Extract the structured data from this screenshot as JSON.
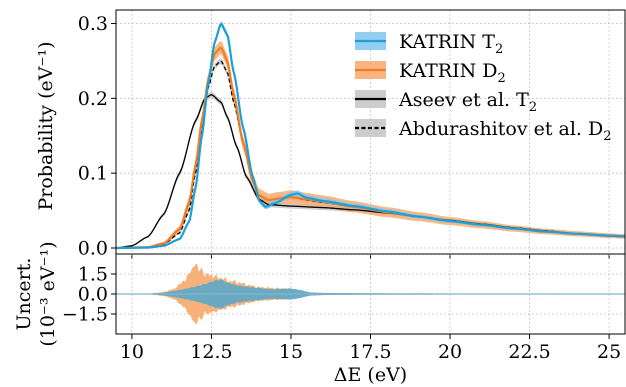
{
  "chart_data": [
    {
      "type": "line",
      "panel": "top",
      "xlim": [
        9.5,
        25.5
      ],
      "ylim": [
        -0.008,
        0.318
      ],
      "grid": true,
      "legend_position": "top-right",
      "xticks": [
        10,
        12.5,
        15,
        17.5,
        20,
        22.5,
        25
      ],
      "yticks": [
        0.0,
        0.1,
        0.2,
        0.3
      ],
      "ytick_labels": [
        "0.0",
        "0.1",
        "0.2",
        "0.3"
      ],
      "ylabel": "Probability (eV⁻¹)",
      "xlabel": "",
      "series": [
        {
          "name": "KATRIN T₂",
          "style": "line with band",
          "color": "#1f9fd6",
          "band_color": "#86c9ee",
          "points": [
            [
              9.5,
              0.0
            ],
            [
              10.5,
              0.0005
            ],
            [
              11.0,
              0.003
            ],
            [
              11.5,
              0.012
            ],
            [
              11.8,
              0.035
            ],
            [
              12.0,
              0.08
            ],
            [
              12.2,
              0.15
            ],
            [
              12.4,
              0.22
            ],
            [
              12.6,
              0.275
            ],
            [
              12.8,
              0.3
            ],
            [
              13.0,
              0.285
            ],
            [
              13.2,
              0.235
            ],
            [
              13.5,
              0.16
            ],
            [
              13.8,
              0.095
            ],
            [
              14.0,
              0.063
            ],
            [
              14.2,
              0.055
            ],
            [
              14.5,
              0.06
            ],
            [
              15.0,
              0.071
            ],
            [
              15.2,
              0.073
            ],
            [
              15.5,
              0.067
            ],
            [
              16,
              0.063
            ],
            [
              17,
              0.056
            ],
            [
              18,
              0.049
            ],
            [
              19,
              0.042
            ],
            [
              20,
              0.036
            ],
            [
              21,
              0.031
            ],
            [
              22,
              0.026
            ],
            [
              23,
              0.022
            ],
            [
              24,
              0.019
            ],
            [
              25,
              0.0165
            ],
            [
              25.5,
              0.0155
            ]
          ]
        },
        {
          "name": "KATRIN D₂",
          "style": "line with band",
          "color": "#ef7d21",
          "band_color": "#f7ad73",
          "points": [
            [
              9.5,
              0.0
            ],
            [
              10.5,
              0.001
            ],
            [
              11.0,
              0.006
            ],
            [
              11.5,
              0.025
            ],
            [
              11.8,
              0.06
            ],
            [
              12.0,
              0.11
            ],
            [
              12.2,
              0.17
            ],
            [
              12.4,
              0.225
            ],
            [
              12.6,
              0.26
            ],
            [
              12.8,
              0.268
            ],
            [
              13.0,
              0.25
            ],
            [
              13.2,
              0.205
            ],
            [
              13.5,
              0.14
            ],
            [
              13.8,
              0.09
            ],
            [
              14.0,
              0.07
            ],
            [
              14.3,
              0.064
            ],
            [
              14.6,
              0.066
            ],
            [
              15.0,
              0.068
            ],
            [
              15.5,
              0.065
            ],
            [
              16,
              0.062
            ],
            [
              17,
              0.055
            ],
            [
              18,
              0.048
            ],
            [
              19,
              0.042
            ],
            [
              20,
              0.036
            ],
            [
              21,
              0.031
            ],
            [
              22,
              0.026
            ],
            [
              23,
              0.022
            ],
            [
              24,
              0.019
            ],
            [
              25,
              0.0165
            ],
            [
              25.5,
              0.0155
            ]
          ]
        },
        {
          "name": "Aseev et al. T₂",
          "style": "solid line with band",
          "color": "#000000",
          "band_color": "#c8c8c8",
          "points": [
            [
              9.5,
              0.0
            ],
            [
              10.0,
              0.003
            ],
            [
              10.5,
              0.015
            ],
            [
              11.0,
              0.045
            ],
            [
              11.5,
              0.1
            ],
            [
              12.0,
              0.17
            ],
            [
              12.3,
              0.2
            ],
            [
              12.5,
              0.205
            ],
            [
              12.8,
              0.195
            ],
            [
              13.0,
              0.175
            ],
            [
              13.3,
              0.135
            ],
            [
              13.6,
              0.095
            ],
            [
              14.0,
              0.065
            ],
            [
              14.3,
              0.058
            ],
            [
              15.0,
              0.056
            ],
            [
              16,
              0.054
            ],
            [
              17,
              0.051
            ],
            [
              18,
              0.047
            ],
            [
              19,
              0.042
            ],
            [
              20,
              0.037
            ],
            [
              21,
              0.032
            ],
            [
              22,
              0.027
            ],
            [
              23,
              0.023
            ],
            [
              24,
              0.019
            ],
            [
              25,
              0.016
            ],
            [
              25.5,
              0.015
            ]
          ]
        },
        {
          "name": "Abdurashitov et al. D₂",
          "style": "dashed line with band",
          "color": "#000000",
          "band_color": "#c8c8c8",
          "points": [
            [
              9.5,
              0.0
            ],
            [
              10.5,
              0.0008
            ],
            [
              11.0,
              0.005
            ],
            [
              11.5,
              0.02
            ],
            [
              11.8,
              0.05
            ],
            [
              12.0,
              0.1
            ],
            [
              12.2,
              0.16
            ],
            [
              12.4,
              0.215
            ],
            [
              12.6,
              0.243
            ],
            [
              12.8,
              0.25
            ],
            [
              13.0,
              0.235
            ],
            [
              13.2,
              0.195
            ],
            [
              13.5,
              0.14
            ],
            [
              13.8,
              0.09
            ],
            [
              14.0,
              0.07
            ],
            [
              14.3,
              0.064
            ],
            [
              14.6,
              0.066
            ],
            [
              15.0,
              0.068
            ],
            [
              15.5,
              0.064
            ],
            [
              16,
              0.061
            ],
            [
              17,
              0.055
            ],
            [
              18,
              0.048
            ],
            [
              19,
              0.042
            ],
            [
              20,
              0.036
            ],
            [
              21,
              0.031
            ],
            [
              22,
              0.026
            ],
            [
              23,
              0.022
            ],
            [
              24,
              0.019
            ],
            [
              25,
              0.0165
            ],
            [
              25.5,
              0.0155
            ]
          ]
        }
      ]
    },
    {
      "type": "area",
      "panel": "bottom",
      "xlim": [
        9.5,
        25.5
      ],
      "ylim": [
        -3.0,
        3.0
      ],
      "grid": true,
      "xticks": [
        10,
        12.5,
        15,
        17.5,
        20,
        22.5,
        25
      ],
      "xtick_labels": [
        "10",
        "12.5",
        "15",
        "17.5",
        "20",
        "22.5",
        "25"
      ],
      "yticks": [
        1.5,
        0.0,
        -1.5
      ],
      "ytick_labels": [
        "1.5",
        "0.0",
        "−1.5"
      ],
      "xlabel": "ΔE (eV)",
      "ylabel_line1": "Uncert.",
      "ylabel_line2": "(10⁻³ eV⁻¹)",
      "series": [
        {
          "name": "KATRIN D₂",
          "color": "#f7ad73",
          "x": [
            9.5,
            10.5,
            11.0,
            11.3,
            11.6,
            11.8,
            11.9,
            12.0,
            12.1,
            12.2,
            12.3,
            12.4,
            12.6,
            12.8,
            13.0,
            13.3,
            13.6,
            14.0,
            14.4,
            14.8,
            15.2,
            15.5,
            16,
            17,
            18,
            19,
            20,
            21,
            22,
            23,
            23.5,
            24,
            25,
            25.5
          ],
          "half_width": [
            0.0,
            0.02,
            0.15,
            0.35,
            0.9,
            1.5,
            1.9,
            2.4,
            1.7,
            2.0,
            1.3,
            1.5,
            1.3,
            1.2,
            1.0,
            0.9,
            0.7,
            0.5,
            0.45,
            0.4,
            0.2,
            0.12,
            0.08,
            0.06,
            0.05,
            0.05,
            0.04,
            0.04,
            0.04,
            0.04,
            0.04,
            0.02,
            0.02,
            0.02
          ]
        },
        {
          "name": "KATRIN T₂",
          "color": "#5aa8c8",
          "x": [
            9.5,
            10.5,
            11.0,
            11.5,
            12.0,
            12.3,
            12.6,
            12.8,
            13.0,
            13.3,
            13.6,
            14.0,
            14.4,
            14.8,
            15.0,
            15.3,
            15.6,
            16,
            17,
            18,
            20,
            22,
            23,
            23.5,
            24,
            25,
            25.5
          ],
          "half_width": [
            0.0,
            0.02,
            0.1,
            0.3,
            0.55,
            0.75,
            1.0,
            1.1,
            0.85,
            0.65,
            0.55,
            0.45,
            0.35,
            0.4,
            0.42,
            0.3,
            0.12,
            0.08,
            0.06,
            0.05,
            0.04,
            0.04,
            0.04,
            0.04,
            0.02,
            0.02,
            0.02
          ]
        }
      ]
    }
  ],
  "legend": [
    {
      "label": "KATRIN T",
      "sub": "2",
      "color": "#1f9fd6",
      "band_color": "#86c9ee",
      "dash": false
    },
    {
      "label": "KATRIN D",
      "sub": "2",
      "color": "#ef7d21",
      "band_color": "#f7ad73",
      "dash": false
    },
    {
      "label": "Aseev et al. T",
      "sub": "2",
      "color": "#000000",
      "band_color": "#c8c8c8",
      "dash": false
    },
    {
      "label": "Abdurashitov et al. D",
      "sub": "2",
      "color": "#000000",
      "band_color": "#c8c8c8",
      "dash": true
    }
  ]
}
